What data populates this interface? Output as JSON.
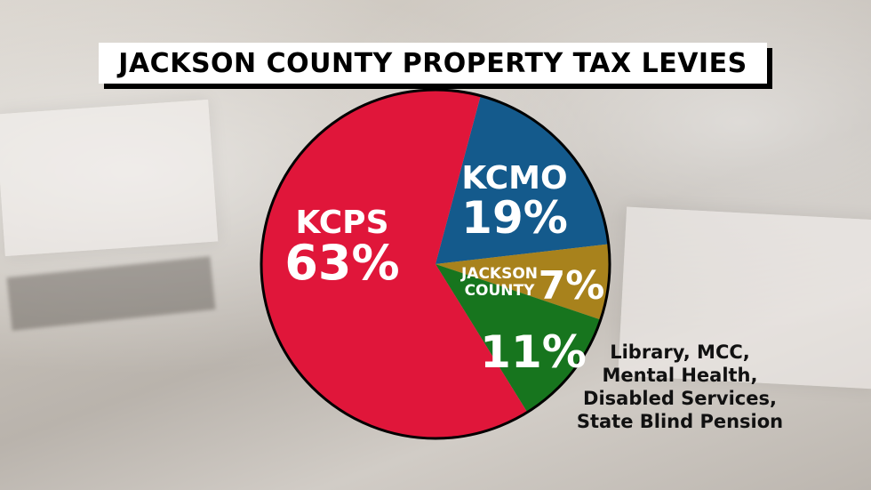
{
  "title": "JACKSON COUNTY PROPERTY TAX LEVIES",
  "chart_data": {
    "type": "pie",
    "slices": [
      {
        "label": "KCPS",
        "value": 63,
        "display": "63%",
        "color": "#e0163a"
      },
      {
        "label": "KCMO",
        "value": 19,
        "display": "19%",
        "color": "#145a8c"
      },
      {
        "label": "JACKSON COUNTY",
        "label_lines": [
          "JACKSON",
          "COUNTY"
        ],
        "value": 7,
        "display": "7%",
        "color": "#a8821c"
      },
      {
        "label": "Library, MCC, Mental Health, Disabled Services, State Blind Pension",
        "value": 11,
        "display": "11%",
        "color": "#17751e"
      }
    ],
    "other_label_lines": [
      "Library, MCC,",
      "Mental Health,",
      "Disabled Services,",
      "State Blind Pension"
    ]
  }
}
